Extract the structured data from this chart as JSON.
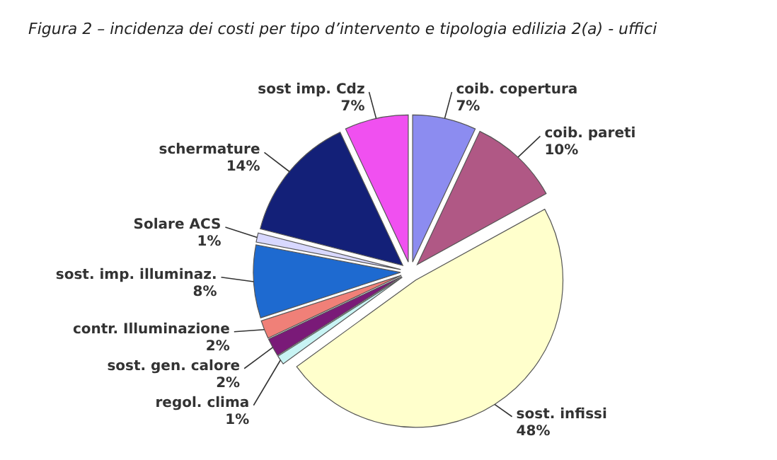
{
  "chart_data": {
    "type": "pie",
    "title": "Figura 2 – incidenza dei costi per tipo d’intervento e tipologia edilizia 2(a) - uffici",
    "categories": [
      "coib. copertura",
      "coib. pareti",
      "sost. infissi",
      "regol. clima",
      "sost. gen. calore",
      "contr. Illuminazione",
      "sost. imp. illuminaz.",
      "Solare ACS",
      "schermature",
      "sost imp. Cdz"
    ],
    "values": [
      7,
      10,
      48,
      1,
      2,
      2,
      8,
      1,
      14,
      7
    ],
    "colors": [
      "#8c8cf0",
      "#b05885",
      "#ffffcc",
      "#c8f4f4",
      "#7a1a78",
      "#f08078",
      "#1e6ad0",
      "#d8d8ff",
      "#132078",
      "#f050f0"
    ],
    "value_labels": [
      "7%",
      "10%",
      "48%",
      "1%",
      "2%",
      "2%",
      "8%",
      "1%",
      "14%",
      "7%"
    ]
  }
}
